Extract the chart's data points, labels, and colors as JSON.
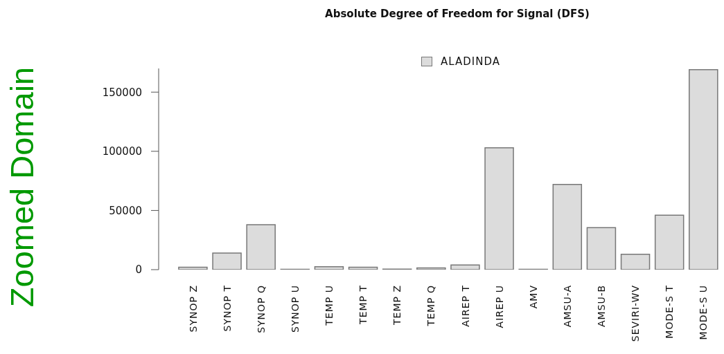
{
  "chart_data": {
    "type": "bar",
    "title": "Absolute Degree of Freedom for Signal (DFS)",
    "ylabel": "Zoomed Domain",
    "categories": [
      "SYNOP Z",
      "SYNOP T",
      "SYNOP Q",
      "SYNOP U",
      "TEMP U",
      "TEMP T",
      "TEMP Z",
      "TEMP Q",
      "AIREP T",
      "AIREP U",
      "AMV",
      "AMSU-A",
      "AMSU-B",
      "SEVIRI-WV",
      "MODE-S T",
      "MODE-S U"
    ],
    "series": [
      {
        "name": "ALADINDA",
        "color": "#dcdcdc",
        "values": [
          2000,
          14000,
          38000,
          300,
          2500,
          2000,
          500,
          1500,
          4000,
          103000,
          300,
          72000,
          35500,
          13000,
          46000,
          169000
        ]
      }
    ],
    "ylim": [
      0,
      170000
    ],
    "yticks": [
      0,
      50000,
      100000,
      150000
    ],
    "legend": "top"
  }
}
